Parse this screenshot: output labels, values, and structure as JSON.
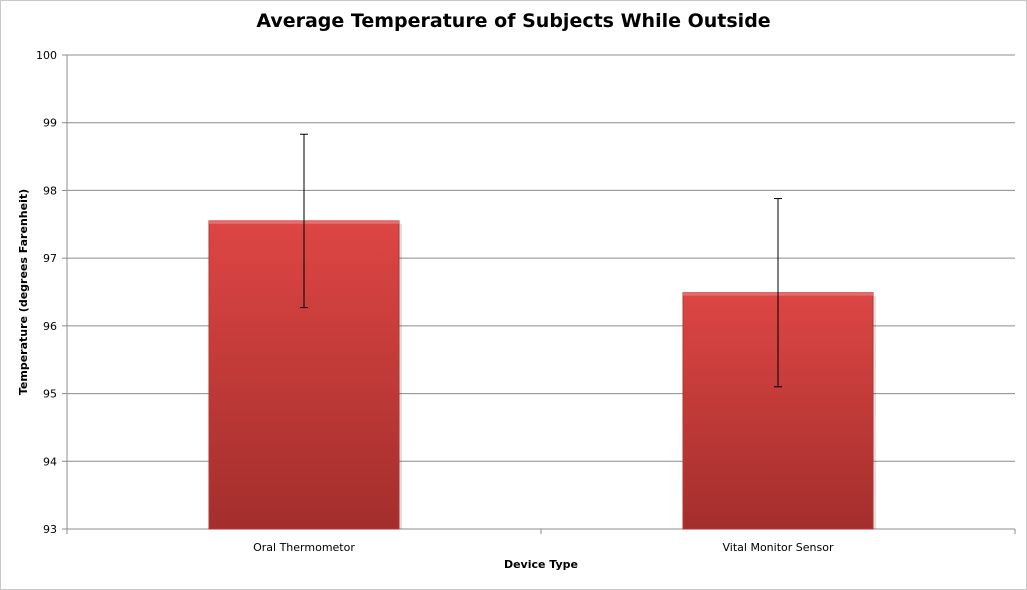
{
  "chart_data": {
    "type": "bar",
    "title": "Average Temperature of Subjects While Outside",
    "xlabel": "Device Type",
    "ylabel": "Temperature (degrees Farenheit)",
    "categories": [
      "Oral Thermometor",
      "Vital Monitor Sensor"
    ],
    "values": [
      97.55,
      96.49
    ],
    "error_low": [
      96.27,
      95.1
    ],
    "error_high": [
      98.83,
      97.88
    ],
    "ylim": [
      93,
      100
    ],
    "yticks": [
      "93",
      "94",
      "95",
      "96",
      "97",
      "98",
      "99",
      "100"
    ],
    "grid": true,
    "legend": "none",
    "bar_color_top": "#dd4644",
    "bar_color_bottom": "#a32e2c",
    "grid_color": "#8c8c8c"
  }
}
